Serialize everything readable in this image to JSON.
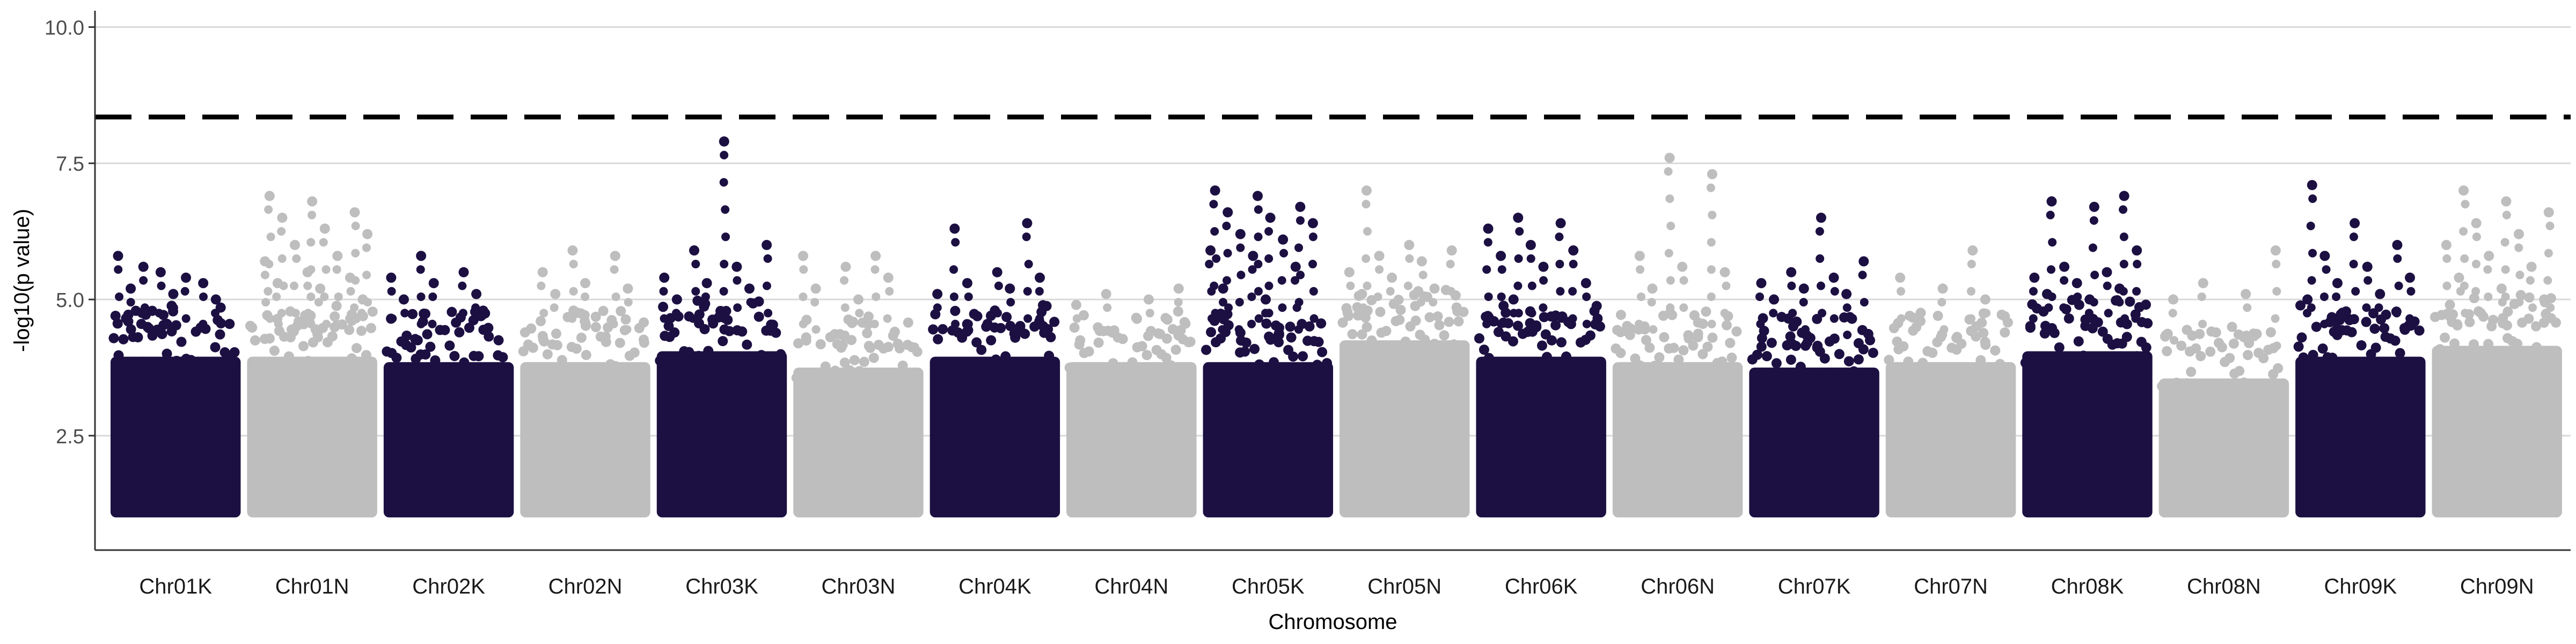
{
  "chart_data": {
    "type": "scatter",
    "subtype": "manhattan",
    "title": "",
    "xlabel": "Chromosome",
    "ylabel": "-log10(p value)",
    "ylim": [
      0.4,
      10.3
    ],
    "yticks": [
      2.5,
      5.0,
      7.5,
      10.0
    ],
    "ytick_labels": [
      "2.5",
      "5.0",
      "7.5",
      "10.0"
    ],
    "grid": "horizontal major",
    "threshold": {
      "value": 8.35,
      "style": "dashed"
    },
    "colors": {
      "dark": "#1c1042",
      "light": "#bebebe",
      "grid": "#d9d9d9",
      "threshold": "#000000"
    },
    "point_floor": 1.0,
    "categories": [
      "Chr01K",
      "Chr01N",
      "Chr02K",
      "Chr02N",
      "Chr03K",
      "Chr03N",
      "Chr04K",
      "Chr04N",
      "Chr05K",
      "Chr05N",
      "Chr06K",
      "Chr06N",
      "Chr07K",
      "Chr07N",
      "Chr08K",
      "Chr08N",
      "Chr09K",
      "Chr09N"
    ],
    "chromosomes": [
      {
        "name": "Chr01K",
        "color": "dark",
        "band_max": 4.3,
        "peak_points": [
          5.8,
          5.5,
          5.3,
          5.2,
          5.1,
          5.0,
          5.6,
          5.4
        ]
      },
      {
        "name": "Chr01N",
        "color": "light",
        "band_max": 4.3,
        "peak_points": [
          6.9,
          6.8,
          6.6,
          6.5,
          6.3,
          6.2,
          6.0,
          5.8,
          5.7,
          5.5,
          5.4,
          5.3,
          5.2,
          5.0
        ]
      },
      {
        "name": "Chr02K",
        "color": "dark",
        "band_max": 4.2,
        "peak_points": [
          5.8,
          5.5,
          5.4,
          5.3,
          5.1,
          5.0
        ]
      },
      {
        "name": "Chr02N",
        "color": "light",
        "band_max": 4.2,
        "peak_points": [
          5.9,
          5.8,
          5.5,
          5.3,
          5.2,
          5.1
        ]
      },
      {
        "name": "Chr03K",
        "color": "dark",
        "band_max": 4.4,
        "peak_points": [
          7.9,
          6.0,
          5.9,
          5.6,
          5.4,
          5.3,
          5.2,
          5.0
        ]
      },
      {
        "name": "Chr03N",
        "color": "light",
        "band_max": 4.1,
        "peak_points": [
          5.8,
          5.8,
          5.6,
          5.4,
          5.2,
          5.0
        ]
      },
      {
        "name": "Chr04K",
        "color": "dark",
        "band_max": 4.3,
        "peak_points": [
          6.4,
          6.3,
          5.5,
          5.4,
          5.3,
          5.2,
          5.1
        ]
      },
      {
        "name": "Chr04N",
        "color": "light",
        "band_max": 4.2,
        "peak_points": [
          5.2,
          5.1,
          5.0,
          4.9
        ]
      },
      {
        "name": "Chr05K",
        "color": "dark",
        "band_max": 4.2,
        "peak_points": [
          7.0,
          6.9,
          6.7,
          6.6,
          6.5,
          6.4,
          6.2,
          6.1,
          5.9,
          5.8,
          5.6,
          5.2,
          5.0
        ]
      },
      {
        "name": "Chr05N",
        "color": "light",
        "band_max": 4.6,
        "peak_points": [
          7.0,
          6.0,
          5.9,
          5.8,
          5.7,
          5.5,
          5.4,
          5.2,
          5.1
        ]
      },
      {
        "name": "Chr06K",
        "color": "dark",
        "band_max": 4.3,
        "peak_points": [
          6.5,
          6.4,
          6.3,
          6.0,
          5.9,
          5.8,
          5.6,
          5.3,
          5.0
        ]
      },
      {
        "name": "Chr06N",
        "color": "light",
        "band_max": 4.2,
        "peak_points": [
          7.6,
          7.3,
          5.8,
          5.6,
          5.5,
          5.2
        ]
      },
      {
        "name": "Chr07K",
        "color": "dark",
        "band_max": 4.1,
        "peak_points": [
          6.5,
          5.7,
          5.5,
          5.4,
          5.3,
          5.2,
          5.1,
          5.0
        ]
      },
      {
        "name": "Chr07N",
        "color": "light",
        "band_max": 4.2,
        "peak_points": [
          5.9,
          5.4,
          5.2,
          5.0
        ]
      },
      {
        "name": "Chr08K",
        "color": "dark",
        "band_max": 4.4,
        "peak_points": [
          6.9,
          6.8,
          6.7,
          5.9,
          5.6,
          5.5,
          5.4,
          5.3,
          5.2,
          5.1,
          5.0
        ]
      },
      {
        "name": "Chr08N",
        "color": "light",
        "band_max": 3.9,
        "peak_points": [
          5.9,
          5.3,
          5.1,
          5.0
        ]
      },
      {
        "name": "Chr09K",
        "color": "dark",
        "band_max": 4.3,
        "peak_points": [
          7.1,
          6.4,
          6.0,
          5.8,
          5.6,
          5.4,
          5.3,
          5.1,
          5.0
        ]
      },
      {
        "name": "Chr09N",
        "color": "light",
        "band_max": 4.5,
        "peak_points": [
          7.0,
          6.8,
          6.6,
          6.4,
          6.2,
          6.0,
          5.8,
          5.6,
          5.4,
          5.2,
          5.0
        ]
      }
    ]
  }
}
